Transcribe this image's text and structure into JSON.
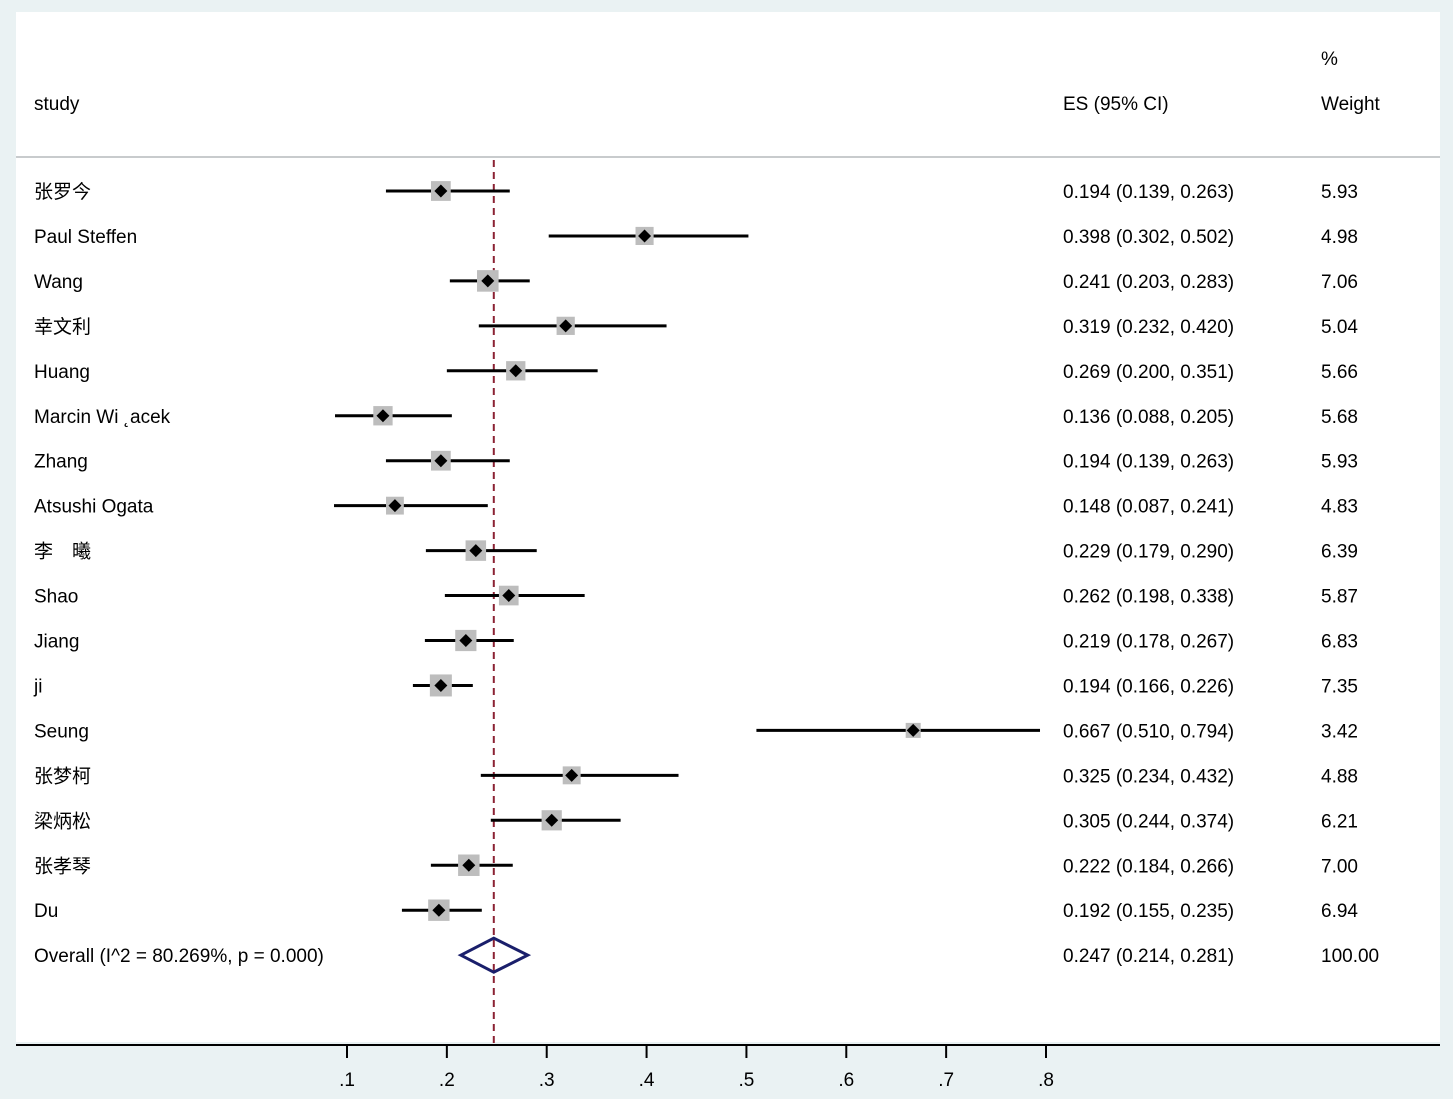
{
  "chart_data": {
    "type": "forest",
    "headers": {
      "study": "study",
      "es": "ES (95% CI)",
      "weight_pct": "%",
      "weight": "Weight"
    },
    "xaxis": {
      "range": [
        0.1,
        0.8
      ],
      "ticks": [
        0.1,
        0.2,
        0.3,
        0.4,
        0.5,
        0.6,
        0.7,
        0.8
      ],
      "tick_labels": [
        ".1",
        ".2",
        ".3",
        ".4",
        ".5",
        ".6",
        ".7",
        ".8"
      ]
    },
    "reference_line": 0.247,
    "studies": [
      {
        "name": "张罗今",
        "es": 0.194,
        "lo": 0.139,
        "hi": 0.263,
        "ci_text": "0.194 (0.139, 0.263)",
        "weight": 5.93,
        "weight_text": "5.93"
      },
      {
        "name": "Paul Steffen",
        "es": 0.398,
        "lo": 0.302,
        "hi": 0.502,
        "ci_text": "0.398 (0.302, 0.502)",
        "weight": 4.98,
        "weight_text": "4.98"
      },
      {
        "name": "Wang",
        "es": 0.241,
        "lo": 0.203,
        "hi": 0.283,
        "ci_text": "0.241 (0.203, 0.283)",
        "weight": 7.06,
        "weight_text": "7.06"
      },
      {
        "name": "幸文利",
        "es": 0.319,
        "lo": 0.232,
        "hi": 0.42,
        "ci_text": "0.319 (0.232, 0.420)",
        "weight": 5.04,
        "weight_text": "5.04"
      },
      {
        "name": "Huang",
        "es": 0.269,
        "lo": 0.2,
        "hi": 0.351,
        "ci_text": "0.269 (0.200, 0.351)",
        "weight": 5.66,
        "weight_text": "5.66"
      },
      {
        "name": "Marcin Wi ˛acek",
        "es": 0.136,
        "lo": 0.088,
        "hi": 0.205,
        "ci_text": "0.136 (0.088, 0.205)",
        "weight": 5.68,
        "weight_text": "5.68"
      },
      {
        "name": "Zhang",
        "es": 0.194,
        "lo": 0.139,
        "hi": 0.263,
        "ci_text": "0.194 (0.139, 0.263)",
        "weight": 5.93,
        "weight_text": "5.93"
      },
      {
        "name": "Atsushi Ogata",
        "es": 0.148,
        "lo": 0.087,
        "hi": 0.241,
        "ci_text": "0.148 (0.087, 0.241)",
        "weight": 4.83,
        "weight_text": "4.83"
      },
      {
        "name": "李　曦",
        "es": 0.229,
        "lo": 0.179,
        "hi": 0.29,
        "ci_text": "0.229 (0.179, 0.290)",
        "weight": 6.39,
        "weight_text": "6.39"
      },
      {
        "name": "Shao",
        "es": 0.262,
        "lo": 0.198,
        "hi": 0.338,
        "ci_text": "0.262 (0.198, 0.338)",
        "weight": 5.87,
        "weight_text": "5.87"
      },
      {
        "name": "Jiang",
        "es": 0.219,
        "lo": 0.178,
        "hi": 0.267,
        "ci_text": "0.219 (0.178, 0.267)",
        "weight": 6.83,
        "weight_text": "6.83"
      },
      {
        "name": "ji",
        "es": 0.194,
        "lo": 0.166,
        "hi": 0.226,
        "ci_text": "0.194 (0.166, 0.226)",
        "weight": 7.35,
        "weight_text": "7.35"
      },
      {
        "name": "Seung",
        "es": 0.667,
        "lo": 0.51,
        "hi": 0.794,
        "ci_text": "0.667 (0.510, 0.794)",
        "weight": 3.42,
        "weight_text": "3.42"
      },
      {
        "name": "张梦柯",
        "es": 0.325,
        "lo": 0.234,
        "hi": 0.432,
        "ci_text": "0.325 (0.234, 0.432)",
        "weight": 4.88,
        "weight_text": "4.88"
      },
      {
        "name": "梁炳松",
        "es": 0.305,
        "lo": 0.244,
        "hi": 0.374,
        "ci_text": "0.305 (0.244, 0.374)",
        "weight": 6.21,
        "weight_text": "6.21"
      },
      {
        "name": "张孝琴",
        "es": 0.222,
        "lo": 0.184,
        "hi": 0.266,
        "ci_text": "0.222 (0.184, 0.266)",
        "weight": 7.0,
        "weight_text": "7.00"
      },
      {
        "name": "Du",
        "es": 0.192,
        "lo": 0.155,
        "hi": 0.235,
        "ci_text": "0.192 (0.155, 0.235)",
        "weight": 6.94,
        "weight_text": "6.94"
      }
    ],
    "overall": {
      "label": "Overall  (I^2 = 80.269%, p = 0.000)",
      "es": 0.247,
      "lo": 0.214,
      "hi": 0.281,
      "ci_text": "0.247 (0.214, 0.281)",
      "weight_text": "100.00"
    },
    "colors": {
      "background": "#eaf2f3",
      "panel": "#ffffff",
      "ci_line": "#000000",
      "weight_box": "#bdbdbd",
      "point": "#000000",
      "reference_line": "#8b2233",
      "overall_diamond": "#1a1f6b",
      "divider": "#c8cbcd"
    }
  }
}
